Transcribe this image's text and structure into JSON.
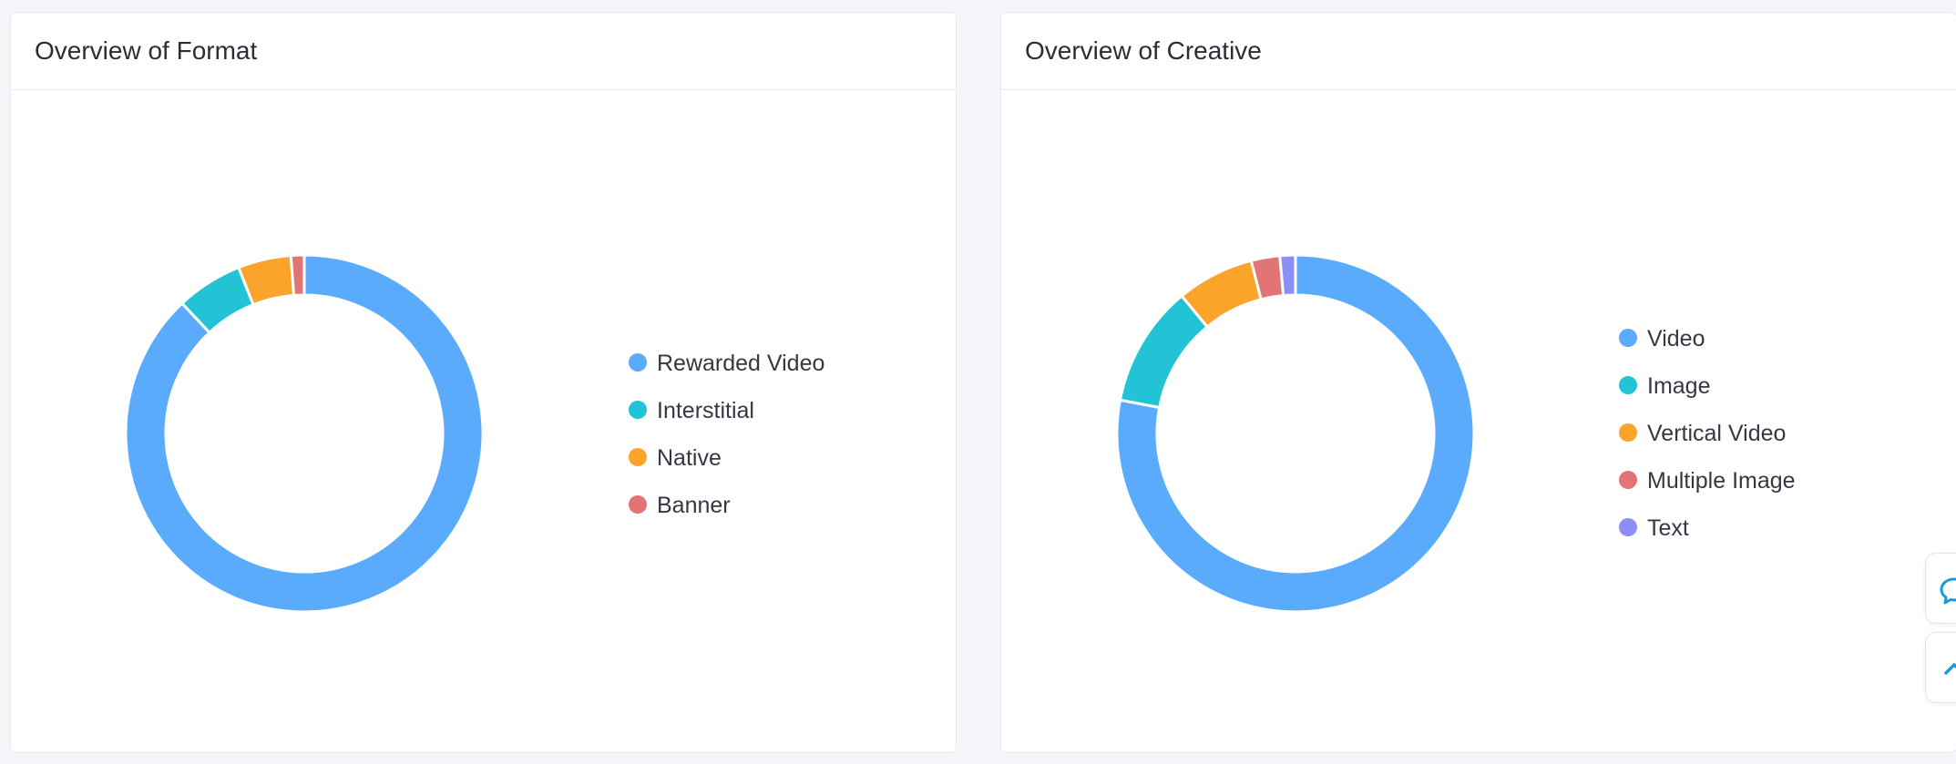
{
  "cards": {
    "format": {
      "title": "Overview of Format"
    },
    "creative": {
      "title": "Overview of Creative"
    }
  },
  "floating": {
    "chat_icon": "chat-bubble-icon",
    "top_icon": "back-to-top-icon",
    "color": "#1a9bd7"
  },
  "chart_data": [
    {
      "type": "pie",
      "style": "donut",
      "title": "Overview of Format",
      "legend_position": "right",
      "categories": [
        "Rewarded Video",
        "Interstitial",
        "Native",
        "Banner"
      ],
      "values": [
        88,
        6,
        4.8,
        1.2
      ],
      "colors": [
        "#5aabfb",
        "#23c3d6",
        "#fba42c",
        "#e37476"
      ]
    },
    {
      "type": "pie",
      "style": "donut",
      "title": "Overview of Creative",
      "legend_position": "right",
      "categories": [
        "Video",
        "Image",
        "Vertical Video",
        "Multiple Image",
        "Text"
      ],
      "values": [
        78,
        11,
        7,
        2.6,
        1.4
      ],
      "colors": [
        "#5aabfb",
        "#23c3d6",
        "#fba42c",
        "#e37476",
        "#8b8ff7"
      ]
    }
  ]
}
